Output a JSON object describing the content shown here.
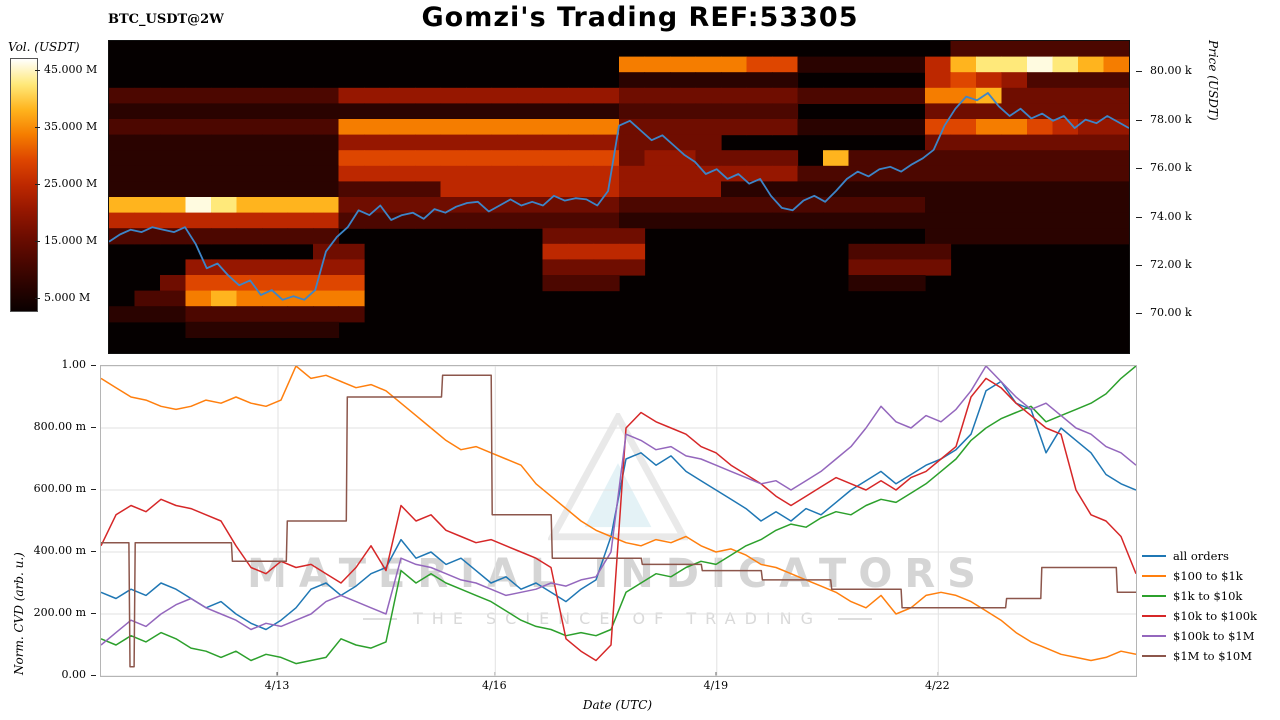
{
  "header": {
    "title": "Gomzi's Trading REF:53305",
    "symbol": "BTC_USDT@2W"
  },
  "watermark": {
    "line1": "MATERIAL INDICATORS",
    "line2": "THE SCIENCE OF TRADING"
  },
  "chart_data": [
    {
      "type": "heatmap",
      "description": "BTC/USDT volume liquidity heatmap with price line overlay",
      "colorbar_label": "Vol. (USDT)",
      "colorbar_ticks": [
        {
          "label": "45.000 M",
          "f": 0.048
        },
        {
          "label": "35.000 M",
          "f": 0.274
        },
        {
          "label": "25.000 M",
          "f": 0.5
        },
        {
          "label": "15.000 M",
          "f": 0.726
        },
        {
          "label": "5.000 M",
          "f": 0.952
        }
      ],
      "colorbar_gradient": [
        "#ffffff",
        "#ffe97a",
        "#ffb41e",
        "#f57d00",
        "#de4600",
        "#bd2800",
        "#961700",
        "#6f0d00",
        "#4c0700",
        "#2a0300",
        "#0a0000"
      ],
      "palette": [
        "#0a0000",
        "#2a0300",
        "#4c0700",
        "#6f0d00",
        "#961700",
        "#bd2800",
        "#de4600",
        "#f57d00",
        "#ffb41e",
        "#ffe97a",
        "#fffbe0"
      ],
      "price_line_color": "#3d85c8",
      "price_axis": {
        "label": "Price (USDT)",
        "min": 68.4,
        "max": 81.3,
        "ticks": [
          {
            "label": "80.00 k",
            "price": 80
          },
          {
            "label": "78.00 k",
            "price": 78
          },
          {
            "label": "76.00 k",
            "price": 76
          },
          {
            "label": "74.00 k",
            "price": 74
          },
          {
            "label": "72.00 k",
            "price": 72
          },
          {
            "label": "70.00 k",
            "price": 70
          }
        ]
      },
      "grid": [
        "0000000000000000000000000000000002222222",
        "000000000000000000007777766111115899a987",
        "0000000000000000000011111110000056542222",
        "2222222224444444444433333332222277833333",
        "1111111111111111111122222220000033333333",
        "2222222227777777777733333331111166776544",
        "1111111114444444444433330000000033333333",
        "1111111116666666666634433330822222222222",
        "1111111115555555555544444442222222222222",
        "1111111112222555555544441111111111111111",
        "888a988883333333333322222222222211111111",
        "5555555552222222222211111111111111111111",
        "2222222220000000033330000000000011111111",
        "0000000033000000055550000000022220000000",
        "0004444444000000033330000000033330000000",
        "0036666666000000022200000000011100000000",
        "0227877777000000000000000000000000000000",
        "1112222222000000000000000000000000000000",
        "0001111110000000000000000000000000000000",
        "0000000000000000000000000000000000000000"
      ],
      "price_line": [
        73.0,
        73.3,
        73.5,
        73.4,
        73.6,
        73.5,
        73.4,
        73.6,
        72.9,
        71.9,
        72.1,
        71.6,
        71.2,
        71.4,
        70.8,
        71.0,
        70.6,
        70.75,
        70.6,
        71.0,
        72.6,
        73.2,
        73.6,
        74.3,
        74.1,
        74.5,
        73.9,
        74.1,
        74.2,
        73.95,
        74.35,
        74.2,
        74.45,
        74.6,
        74.65,
        74.25,
        74.5,
        74.75,
        74.5,
        74.65,
        74.5,
        74.9,
        74.7,
        74.8,
        74.75,
        74.5,
        75.1,
        77.8,
        78.0,
        77.6,
        77.2,
        77.4,
        77.0,
        76.6,
        76.3,
        75.8,
        76.0,
        75.6,
        75.8,
        75.4,
        75.6,
        74.9,
        74.4,
        74.3,
        74.7,
        74.9,
        74.65,
        75.1,
        75.6,
        75.9,
        75.7,
        76.0,
        76.1,
        75.9,
        76.2,
        76.45,
        76.8,
        77.8,
        78.5,
        79.0,
        78.85,
        79.15,
        78.6,
        78.2,
        78.5,
        78.1,
        78.3,
        78.0,
        78.2,
        77.7,
        78.05,
        77.9,
        78.2,
        77.95,
        77.7
      ]
    },
    {
      "type": "line",
      "xlabel": "Date (UTC)",
      "ylabel": "Norm. CVD (arb. u.)",
      "ylim": [
        0,
        1
      ],
      "grid": true,
      "legend_position": "right",
      "yticks": [
        {
          "label": "0.00",
          "v": 0.0
        },
        {
          "label": "200.00 m",
          "v": 0.2
        },
        {
          "label": "400.00 m",
          "v": 0.4
        },
        {
          "label": "600.00 m",
          "v": 0.6
        },
        {
          "label": "800.00 m",
          "v": 0.8
        },
        {
          "label": "1.00",
          "v": 1.0
        }
      ],
      "xticks": [
        {
          "label": "4/13",
          "t": 0.171
        },
        {
          "label": "4/16",
          "t": 0.381
        },
        {
          "label": "4/19",
          "t": 0.595
        },
        {
          "label": "4/22",
          "t": 0.809
        }
      ],
      "series": [
        {
          "name": "all orders",
          "color": "#1f77b4",
          "values": [
            0.27,
            0.25,
            0.28,
            0.26,
            0.3,
            0.28,
            0.25,
            0.22,
            0.24,
            0.2,
            0.17,
            0.15,
            0.18,
            0.22,
            0.28,
            0.3,
            0.26,
            0.29,
            0.33,
            0.35,
            0.44,
            0.38,
            0.4,
            0.36,
            0.38,
            0.34,
            0.3,
            0.32,
            0.28,
            0.3,
            0.27,
            0.24,
            0.28,
            0.31,
            0.45,
            0.7,
            0.72,
            0.68,
            0.71,
            0.66,
            0.63,
            0.6,
            0.57,
            0.54,
            0.5,
            0.53,
            0.5,
            0.54,
            0.52,
            0.56,
            0.6,
            0.63,
            0.66,
            0.62,
            0.65,
            0.68,
            0.7,
            0.73,
            0.78,
            0.92,
            0.95,
            0.88,
            0.86,
            0.72,
            0.8,
            0.76,
            0.72,
            0.65,
            0.62,
            0.6
          ]
        },
        {
          "name": "$100 to $1k",
          "color": "#ff7f0e",
          "values": [
            0.96,
            0.93,
            0.9,
            0.89,
            0.87,
            0.86,
            0.87,
            0.89,
            0.88,
            0.9,
            0.88,
            0.87,
            0.89,
            1.0,
            0.96,
            0.97,
            0.95,
            0.93,
            0.94,
            0.92,
            0.88,
            0.84,
            0.8,
            0.76,
            0.73,
            0.74,
            0.72,
            0.7,
            0.68,
            0.62,
            0.58,
            0.54,
            0.5,
            0.47,
            0.45,
            0.43,
            0.42,
            0.44,
            0.43,
            0.45,
            0.42,
            0.4,
            0.41,
            0.39,
            0.36,
            0.35,
            0.33,
            0.31,
            0.29,
            0.27,
            0.24,
            0.22,
            0.26,
            0.2,
            0.22,
            0.26,
            0.27,
            0.26,
            0.24,
            0.21,
            0.18,
            0.14,
            0.11,
            0.09,
            0.07,
            0.06,
            0.05,
            0.06,
            0.08,
            0.07
          ]
        },
        {
          "name": "$1k to $10k",
          "color": "#2ca02c",
          "values": [
            0.12,
            0.1,
            0.13,
            0.11,
            0.14,
            0.12,
            0.09,
            0.08,
            0.06,
            0.08,
            0.05,
            0.07,
            0.06,
            0.04,
            0.05,
            0.06,
            0.12,
            0.1,
            0.09,
            0.11,
            0.34,
            0.3,
            0.33,
            0.3,
            0.28,
            0.26,
            0.24,
            0.21,
            0.18,
            0.16,
            0.15,
            0.13,
            0.14,
            0.13,
            0.15,
            0.27,
            0.3,
            0.33,
            0.32,
            0.35,
            0.37,
            0.36,
            0.39,
            0.42,
            0.44,
            0.47,
            0.49,
            0.48,
            0.51,
            0.53,
            0.52,
            0.55,
            0.57,
            0.56,
            0.59,
            0.62,
            0.66,
            0.7,
            0.76,
            0.8,
            0.83,
            0.85,
            0.87,
            0.82,
            0.84,
            0.86,
            0.88,
            0.91,
            0.96,
            1.0
          ]
        },
        {
          "name": "$10k to $100k",
          "color": "#d62728",
          "values": [
            0.42,
            0.52,
            0.55,
            0.53,
            0.57,
            0.55,
            0.54,
            0.52,
            0.5,
            0.42,
            0.35,
            0.33,
            0.37,
            0.35,
            0.36,
            0.33,
            0.3,
            0.35,
            0.42,
            0.34,
            0.55,
            0.5,
            0.52,
            0.47,
            0.45,
            0.43,
            0.44,
            0.42,
            0.4,
            0.38,
            0.35,
            0.12,
            0.08,
            0.05,
            0.1,
            0.8,
            0.85,
            0.82,
            0.8,
            0.78,
            0.74,
            0.72,
            0.68,
            0.65,
            0.62,
            0.58,
            0.55,
            0.58,
            0.61,
            0.64,
            0.62,
            0.6,
            0.63,
            0.6,
            0.64,
            0.66,
            0.7,
            0.74,
            0.9,
            0.96,
            0.93,
            0.88,
            0.84,
            0.8,
            0.78,
            0.6,
            0.52,
            0.5,
            0.45,
            0.33
          ]
        },
        {
          "name": "$100k to $1M",
          "color": "#9467bd",
          "values": [
            0.1,
            0.14,
            0.18,
            0.16,
            0.2,
            0.23,
            0.25,
            0.22,
            0.2,
            0.18,
            0.15,
            0.17,
            0.16,
            0.18,
            0.2,
            0.24,
            0.26,
            0.24,
            0.22,
            0.2,
            0.38,
            0.36,
            0.35,
            0.33,
            0.31,
            0.3,
            0.28,
            0.26,
            0.27,
            0.28,
            0.3,
            0.29,
            0.31,
            0.32,
            0.4,
            0.78,
            0.76,
            0.73,
            0.74,
            0.71,
            0.7,
            0.68,
            0.66,
            0.64,
            0.62,
            0.63,
            0.6,
            0.63,
            0.66,
            0.7,
            0.74,
            0.8,
            0.87,
            0.82,
            0.8,
            0.84,
            0.82,
            0.86,
            0.92,
            1.0,
            0.95,
            0.9,
            0.86,
            0.88,
            0.84,
            0.8,
            0.78,
            0.74,
            0.72,
            0.68
          ]
        },
        {
          "name": "$1M to $10M",
          "color": "#8c564b",
          "points": [
            [
              0.0,
              0.43
            ],
            [
              0.027,
              0.43
            ],
            [
              0.028,
              0.03
            ],
            [
              0.032,
              0.03
            ],
            [
              0.033,
              0.43
            ],
            [
              0.126,
              0.43
            ],
            [
              0.127,
              0.37
            ],
            [
              0.179,
              0.37
            ],
            [
              0.18,
              0.5
            ],
            [
              0.237,
              0.5
            ],
            [
              0.238,
              0.9
            ],
            [
              0.329,
              0.9
            ],
            [
              0.33,
              0.97
            ],
            [
              0.377,
              0.97
            ],
            [
              0.378,
              0.52
            ],
            [
              0.435,
              0.52
            ],
            [
              0.436,
              0.38
            ],
            [
              0.522,
              0.38
            ],
            [
              0.523,
              0.36
            ],
            [
              0.58,
              0.36
            ],
            [
              0.581,
              0.34
            ],
            [
              0.638,
              0.34
            ],
            [
              0.639,
              0.31
            ],
            [
              0.705,
              0.31
            ],
            [
              0.706,
              0.28
            ],
            [
              0.773,
              0.28
            ],
            [
              0.774,
              0.22
            ],
            [
              0.874,
              0.22
            ],
            [
              0.875,
              0.25
            ],
            [
              0.908,
              0.25
            ],
            [
              0.909,
              0.35
            ],
            [
              0.981,
              0.35
            ],
            [
              0.982,
              0.27
            ],
            [
              1.0,
              0.27
            ]
          ]
        }
      ]
    }
  ]
}
